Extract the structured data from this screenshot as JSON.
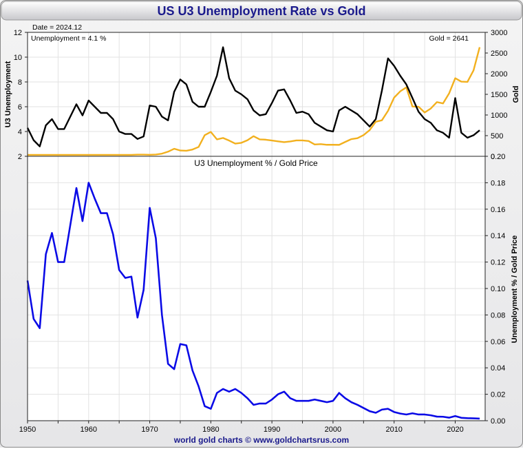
{
  "title": "US U3 Unemployment Rate vs Gold",
  "footer": "world gold charts © www.goldchartsrus.com",
  "colors": {
    "title_text": "#1a1a8c",
    "title_bg_top": "#ffffff",
    "title_bg_bottom": "#c8c8cc",
    "unemployment": "#000000",
    "gold": "#f2b01e",
    "ratio": "#0a0ae6",
    "grid": "#e2e2e2",
    "footer_text": "#1a1a8c"
  },
  "chart_data": [
    {
      "type": "line",
      "annotations": {
        "date": "Date = 2024.12",
        "unemployment": "Unemployment = 4.1 %",
        "gold": "Gold = 2641"
      },
      "xlim": [
        1950,
        2024.9
      ],
      "x_ticks": [
        1950,
        1960,
        1970,
        1980,
        1990,
        2000,
        2010,
        2020
      ],
      "ylabel_left": "U3 Unemployment",
      "ylabel_right": "Gold",
      "ylim_left": [
        2,
        12
      ],
      "yticks_left": [
        2,
        4,
        6,
        8,
        10,
        12
      ],
      "ylim_right": [
        0,
        3000
      ],
      "yticks_right": [
        0,
        500,
        1000,
        1500,
        2000,
        2500,
        3000
      ],
      "grid": true,
      "x": [
        1950,
        1951,
        1952,
        1953,
        1954,
        1955,
        1956,
        1957,
        1958,
        1959,
        1960,
        1961,
        1962,
        1963,
        1964,
        1965,
        1966,
        1967,
        1968,
        1969,
        1970,
        1971,
        1972,
        1973,
        1974,
        1975,
        1976,
        1977,
        1978,
        1979,
        1980,
        1981,
        1982,
        1983,
        1984,
        1985,
        1986,
        1987,
        1988,
        1989,
        1990,
        1991,
        1992,
        1993,
        1994,
        1995,
        1996,
        1997,
        1998,
        1999,
        2000,
        2001,
        2002,
        2003,
        2004,
        2005,
        2006,
        2007,
        2008,
        2009,
        2010,
        2011,
        2012,
        2013,
        2014,
        2015,
        2016,
        2017,
        2018,
        2019,
        2020,
        2021,
        2022,
        2023,
        2024
      ],
      "series": [
        {
          "axis": "left",
          "values": [
            4.3,
            3.3,
            2.8,
            4.5,
            5.0,
            4.2,
            4.2,
            5.2,
            6.2,
            5.3,
            6.5,
            6.0,
            5.5,
            5.5,
            5.0,
            4.0,
            3.8,
            3.8,
            3.4,
            3.6,
            6.1,
            6.0,
            5.2,
            4.9,
            7.2,
            8.2,
            7.8,
            6.4,
            6.0,
            6.0,
            7.2,
            8.5,
            10.8,
            8.3,
            7.3,
            7.0,
            6.6,
            5.7,
            5.3,
            5.4,
            6.3,
            7.3,
            7.4,
            6.5,
            5.5,
            5.6,
            5.4,
            4.7,
            4.4,
            4.1,
            4.0,
            5.7,
            6.0,
            5.7,
            5.4,
            4.9,
            4.4,
            5.0,
            7.3,
            9.9,
            9.3,
            8.5,
            7.8,
            6.7,
            5.6,
            5.0,
            4.7,
            4.1,
            3.9,
            3.5,
            6.7,
            3.9,
            3.5,
            3.7,
            4.1
          ]
        },
        {
          "axis": "right",
          "values": [
            35,
            35,
            35,
            35,
            35,
            35,
            35,
            35,
            35,
            35,
            35,
            35,
            35,
            35,
            35,
            35,
            35,
            35,
            40,
            40,
            37,
            42,
            64,
            112,
            183,
            140,
            134,
            164,
            226,
            512,
            590,
            410,
            444,
            381,
            308,
            327,
            390,
            487,
            410,
            402,
            383,
            362,
            343,
            360,
            384,
            384,
            369,
            287,
            294,
            279,
            279,
            277,
            348,
            416,
            438,
            513,
            635,
            836,
            872,
            1100,
            1421,
            1572,
            1669,
            1205,
            1199,
            1060,
            1157,
            1312,
            1280,
            1522,
            1890,
            1808,
            1801,
            2080,
            2641
          ]
        }
      ]
    },
    {
      "type": "line",
      "title": "U3 Unemployment % / Gold Price",
      "ylabel_right": "Unemployment % / Gold Price",
      "xlim": [
        1950,
        2024.9
      ],
      "x_ticks": [
        1950,
        1960,
        1970,
        1980,
        1990,
        2000,
        2010,
        2020
      ],
      "ylim": [
        0,
        0.2
      ],
      "yticks": [
        "0.00",
        "0.02",
        "0.04",
        "0.06",
        "0.08",
        "0.10",
        "0.12",
        "0.14",
        "0.16",
        "0.18",
        "0.20"
      ],
      "grid": true,
      "x": [
        1950,
        1951,
        1952,
        1953,
        1954,
        1955,
        1956,
        1957,
        1958,
        1959,
        1960,
        1961,
        1962,
        1963,
        1964,
        1965,
        1966,
        1967,
        1968,
        1969,
        1970,
        1971,
        1972,
        1973,
        1974,
        1975,
        1976,
        1977,
        1978,
        1979,
        1980,
        1981,
        1982,
        1983,
        1984,
        1985,
        1986,
        1987,
        1988,
        1989,
        1990,
        1991,
        1992,
        1993,
        1994,
        1995,
        1996,
        1997,
        1998,
        1999,
        2000,
        2001,
        2002,
        2003,
        2004,
        2005,
        2006,
        2007,
        2008,
        2009,
        2010,
        2011,
        2012,
        2013,
        2014,
        2015,
        2016,
        2017,
        2018,
        2019,
        2020,
        2021,
        2022,
        2023,
        2024
      ],
      "series": [
        {
          "values": [
            0.106,
            0.077,
            0.07,
            0.126,
            0.142,
            0.12,
            0.12,
            0.148,
            0.176,
            0.151,
            0.18,
            0.168,
            0.157,
            0.157,
            0.141,
            0.114,
            0.108,
            0.109,
            0.078,
            0.099,
            0.161,
            0.138,
            0.08,
            0.043,
            0.039,
            0.058,
            0.057,
            0.038,
            0.026,
            0.011,
            0.009,
            0.021,
            0.024,
            0.022,
            0.024,
            0.021,
            0.017,
            0.012,
            0.013,
            0.013,
            0.016,
            0.02,
            0.022,
            0.017,
            0.015,
            0.015,
            0.015,
            0.016,
            0.015,
            0.014,
            0.015,
            0.021,
            0.017,
            0.014,
            0.012,
            0.0096,
            0.0072,
            0.006,
            0.0084,
            0.009,
            0.0066,
            0.0054,
            0.0047,
            0.0056,
            0.0047,
            0.0047,
            0.0041,
            0.0031,
            0.003,
            0.0023,
            0.0035,
            0.0022,
            0.0019,
            0.0018,
            0.0016
          ]
        }
      ]
    }
  ]
}
